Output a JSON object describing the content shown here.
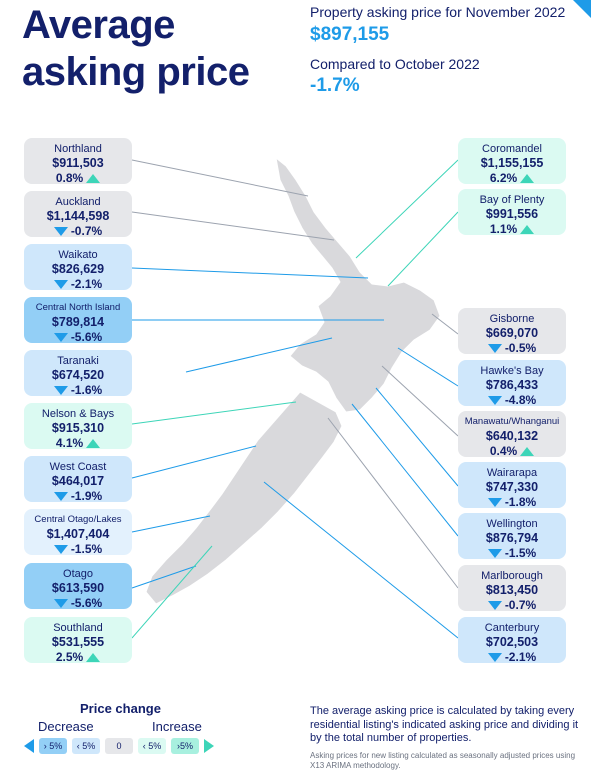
{
  "title_line1": "Average",
  "title_line2": "asking price",
  "headline": {
    "asking_label": "Property asking price for November 2022",
    "asking_value": "$897,155",
    "compare_label": "Compared to October 2022",
    "compare_value": "-1.7%"
  },
  "regions_left": [
    {
      "name": "Northland",
      "price": "$911,503",
      "change": "0.8%",
      "dir": "up",
      "style": "c-grey"
    },
    {
      "name": "Auckland",
      "price": "$1,144,598",
      "change": "-0.7%",
      "dir": "down",
      "style": "c-grey"
    },
    {
      "name": "Waikato",
      "price": "$826,629",
      "change": "-2.1%",
      "dir": "down",
      "style": "c-blue"
    },
    {
      "name": "Central North Island",
      "price": "$789,814",
      "change": "-5.6%",
      "dir": "down",
      "style": "c-dblue",
      "small": true
    },
    {
      "name": "Taranaki",
      "price": "$674,520",
      "change": "-1.6%",
      "dir": "down",
      "style": "c-blue"
    },
    {
      "name": "Nelson & Bays",
      "price": "$915,310",
      "change": "4.1%",
      "dir": "up",
      "style": "c-mint"
    },
    {
      "name": "West Coast",
      "price": "$464,017",
      "change": "-1.9%",
      "dir": "down",
      "style": "c-blue"
    },
    {
      "name": "Central Otago/Lakes",
      "price": "$1,407,404",
      "change": "-1.5%",
      "dir": "down",
      "style": "c-blue",
      "small": true
    },
    {
      "name": "Otago",
      "price": "$613,590",
      "change": "-5.6%",
      "dir": "down",
      "style": "c-dblue"
    },
    {
      "name": "Southland",
      "price": "$531,555",
      "change": "2.5%",
      "dir": "up",
      "style": "c-mint"
    }
  ],
  "regions_right": [
    {
      "name": "Coromandel",
      "price": "$1,155,155",
      "change": "6.2%",
      "dir": "up",
      "style": "c-mint"
    },
    {
      "name": "Bay of Plenty",
      "price": "$991,556",
      "change": "1.1%",
      "dir": "up",
      "style": "c-mint"
    },
    {
      "name": "Gisborne",
      "price": "$669,070",
      "change": "-0.5%",
      "dir": "down",
      "style": "c-grey"
    },
    {
      "name": "Hawke's Bay",
      "price": "$786,433",
      "change": "-4.8%",
      "dir": "down",
      "style": "c-blue"
    },
    {
      "name": "Manawatu/Whanganui",
      "price": "$640,132",
      "change": "0.4%",
      "dir": "up",
      "style": "c-grey",
      "small": true
    },
    {
      "name": "Wairarapa",
      "price": "$747,330",
      "change": "-1.8%",
      "dir": "down",
      "style": "c-blue"
    },
    {
      "name": "Wellington",
      "price": "$876,794",
      "change": "-1.5%",
      "dir": "down",
      "style": "c-blue"
    },
    {
      "name": "Marlborough",
      "price": "$813,450",
      "change": "-0.7%",
      "dir": "down",
      "style": "c-grey"
    },
    {
      "name": "Canterbury",
      "price": "$702,503",
      "change": "-2.1%",
      "dir": "down",
      "style": "c-blue"
    }
  ],
  "legend": {
    "title": "Price change",
    "decrease": "Decrease",
    "increase": "Increase",
    "items": [
      "› 5%",
      "‹ 5%",
      "0",
      "‹ 5%",
      "›5%"
    ]
  },
  "footnote": "The average asking price is calculated by taking every residential listing's indicated asking price and dividing it by the total number of properties.",
  "footnote_small": "Asking prices for new listing calculated as seasonally adjusted prices using X13 ARIMA methodology.",
  "colors": {
    "navy": "#13206b",
    "blue": "#1e9be8",
    "mint": "#3dd5b8"
  }
}
